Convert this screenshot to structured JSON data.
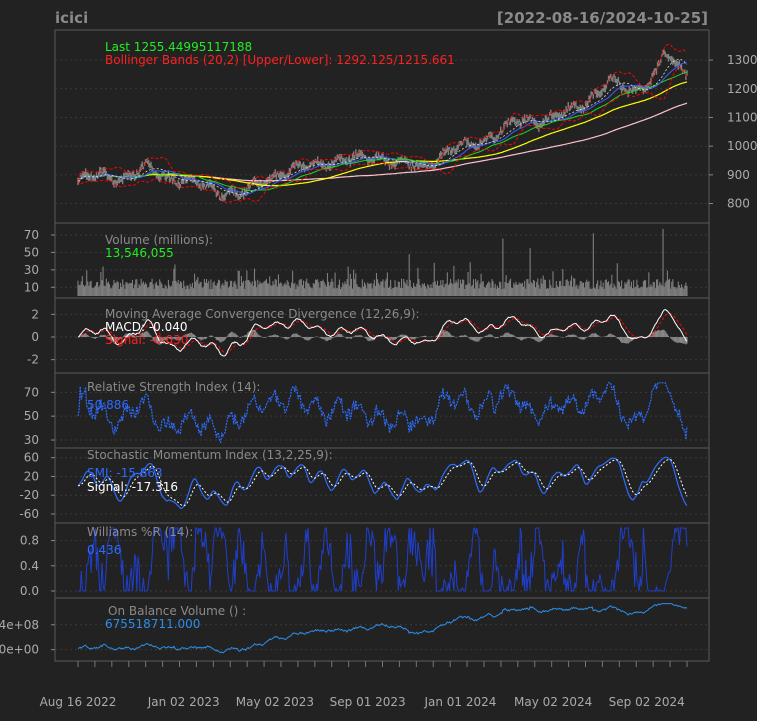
{
  "chart_data": {
    "type": "line",
    "title": "icici",
    "date_range": "[2022-08-16/2024-10-25]",
    "x_tick_labels": [
      "Aug 16 2022",
      "Jan 02 2023",
      "May 02 2023",
      "Sep 01 2023",
      "Jan 01 2024",
      "May 02 2024",
      "Sep 02 2024"
    ],
    "colors": {
      "background": "#222222",
      "grid": "#3a3a3a",
      "axis": "#888888",
      "price": "#7f7f7f",
      "bbands": "#ff0000",
      "sma_fast": "#3c5cff",
      "sma_mid": "#22d422",
      "sma_slow": "#ffff00",
      "sma_long": "#ffc0cb",
      "volume": "#7f7f7f",
      "macd": "#ffffff",
      "signal": "#ff0000",
      "rsi": "#2d6cff",
      "smi": "#2d6cff",
      "wpr": "#1f3fcc",
      "obv": "#2d8ee8"
    },
    "panels": {
      "price": {
        "label_last": "Last 1255.44995117188",
        "label_bbands": "Bollinger Bands (20,2) [Upper/Lower]: 1292.125/1215.661",
        "yticks": [
          "800",
          "900",
          "1000",
          "1100",
          "1200",
          "1300"
        ],
        "ylim": [
          760,
          1370
        ],
        "points": [
          [
            "2022-08-16",
            880
          ],
          [
            "2022-09-15",
            900
          ],
          [
            "2022-10-15",
            885
          ],
          [
            "2022-11-15",
            925
          ],
          [
            "2022-12-15",
            890
          ],
          [
            "2023-01-15",
            870
          ],
          [
            "2023-02-15",
            845
          ],
          [
            "2023-03-15",
            830
          ],
          [
            "2023-04-15",
            875
          ],
          [
            "2023-05-15",
            910
          ],
          [
            "2023-06-15",
            930
          ],
          [
            "2023-07-15",
            945
          ],
          [
            "2023-08-15",
            955
          ],
          [
            "2023-09-15",
            965
          ],
          [
            "2023-10-15",
            935
          ],
          [
            "2023-11-15",
            930
          ],
          [
            "2023-12-15",
            985
          ],
          [
            "2024-01-15",
            1005
          ],
          [
            "2024-02-15",
            1040
          ],
          [
            "2024-03-15",
            1085
          ],
          [
            "2024-04-15",
            1090
          ],
          [
            "2024-05-15",
            1110
          ],
          [
            "2024-06-15",
            1155
          ],
          [
            "2024-07-15",
            1230
          ],
          [
            "2024-08-15",
            1185
          ],
          [
            "2024-09-15",
            1255
          ],
          [
            "2024-09-25",
            1330
          ],
          [
            "2024-10-10",
            1275
          ],
          [
            "2024-10-25",
            1255
          ]
        ]
      },
      "volume": {
        "label": "Volume (millions):",
        "value": "13,546,055",
        "yticks": [
          "10",
          "30",
          "50",
          "70"
        ],
        "ylim": [
          0,
          78
        ],
        "spikes": [
          [
            "2023-10-26",
            48
          ],
          [
            "2023-11-28",
            38
          ],
          [
            "2024-02-26",
            66
          ],
          [
            "2024-04-01",
            55
          ],
          [
            "2024-06-24",
            72
          ],
          [
            "2024-09-23",
            77
          ]
        ]
      },
      "macd": {
        "label": "Moving Average Convergence Divergence (12,26,9):",
        "macd_label": "MACD: -0.040",
        "signal_label": "Signal: -0.030",
        "yticks": [
          "-2",
          "0",
          "2"
        ],
        "ylim": [
          -3,
          3
        ]
      },
      "rsi": {
        "label": "Relative Strength Index (14):",
        "value": "50.886",
        "yticks": [
          "30",
          "50",
          "70"
        ],
        "ylim": [
          25,
          82
        ]
      },
      "smi": {
        "label": "Stochastic Momentum Index (13,2,25,9):",
        "smi_label": "SMI: -15.863",
        "signal_label": "Signal: -17.316",
        "yticks": [
          "-60",
          "-20",
          "20",
          "60"
        ],
        "ylim": [
          -75,
          70
        ]
      },
      "wpr": {
        "label": "Williams %R (14):",
        "value": "0.436",
        "yticks": [
          "0.0",
          "0.4",
          "0.8"
        ],
        "ylim": [
          -0.08,
          1.0
        ]
      },
      "obv": {
        "label": "On Balance Volume () :",
        "value": "675518711.000",
        "yticks": [
          "0e+00",
          "4e+08"
        ],
        "ylim": [
          -150000000,
          750000000
        ]
      }
    }
  }
}
